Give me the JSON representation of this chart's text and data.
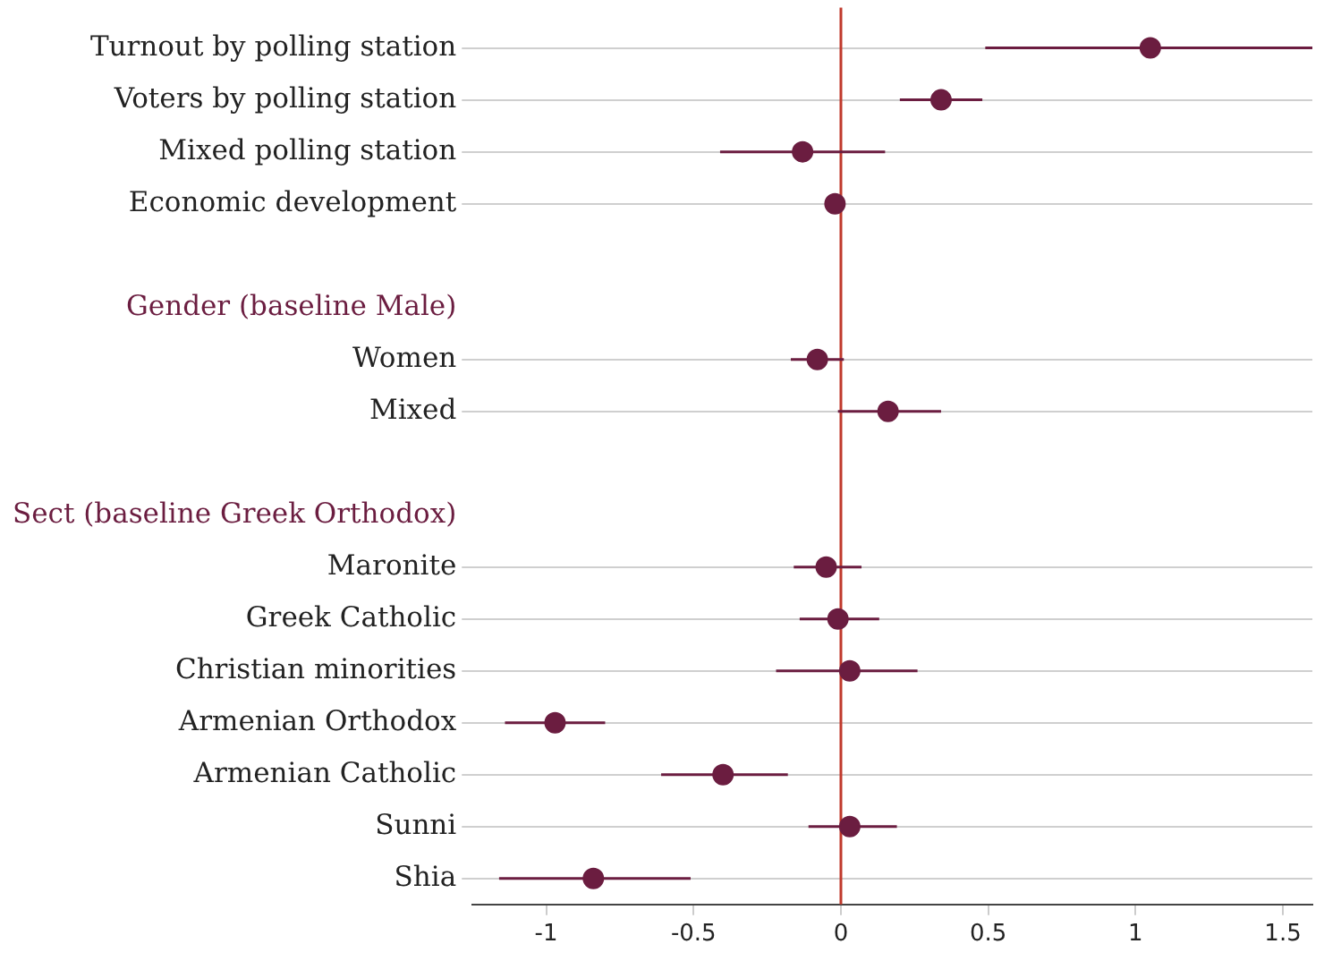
{
  "chart_data": {
    "type": "scatter",
    "orientation": "horizontal",
    "categories": [
      "Turnout by polling station",
      "Voters by polling station",
      "Mixed polling station",
      "Economic development",
      null,
      "Gender (baseline Male)",
      "Women",
      "Mixed",
      null,
      "Sect (baseline Greek Orthodox)",
      "Maronite",
      "Greek Catholic",
      "Christian minorities",
      "Armenian Orthodox",
      "Armenian Catholic",
      "Sunni",
      "Shia"
    ],
    "values": [
      1.05,
      0.34,
      -0.13,
      -0.02,
      null,
      null,
      -0.08,
      0.16,
      null,
      null,
      -0.05,
      -0.01,
      0.03,
      -0.97,
      -0.4,
      0.03,
      -0.84
    ],
    "errors": [
      [
        0.49,
        1.6
      ],
      [
        0.2,
        0.48
      ],
      [
        -0.41,
        0.15
      ],
      [
        -0.04,
        0.0
      ],
      null,
      null,
      [
        -0.17,
        0.01
      ],
      [
        -0.01,
        0.34
      ],
      null,
      null,
      [
        -0.16,
        0.07
      ],
      [
        -0.14,
        0.13
      ],
      [
        -0.22,
        0.26
      ],
      [
        -1.14,
        -0.8
      ],
      [
        -0.61,
        -0.18
      ],
      [
        -0.11,
        0.19
      ],
      [
        -1.16,
        -0.51
      ]
    ],
    "color": "#6b1d40",
    "xlim": [
      -1.25,
      1.6
    ],
    "xticks": [
      -1,
      -0.5,
      0,
      0.5,
      1,
      1.5
    ],
    "ref_lines": [
      {
        "axis": "x",
        "value": 0,
        "color": "#c0392b"
      }
    ],
    "grid": "y",
    "marker": "circle",
    "legend": false
  }
}
